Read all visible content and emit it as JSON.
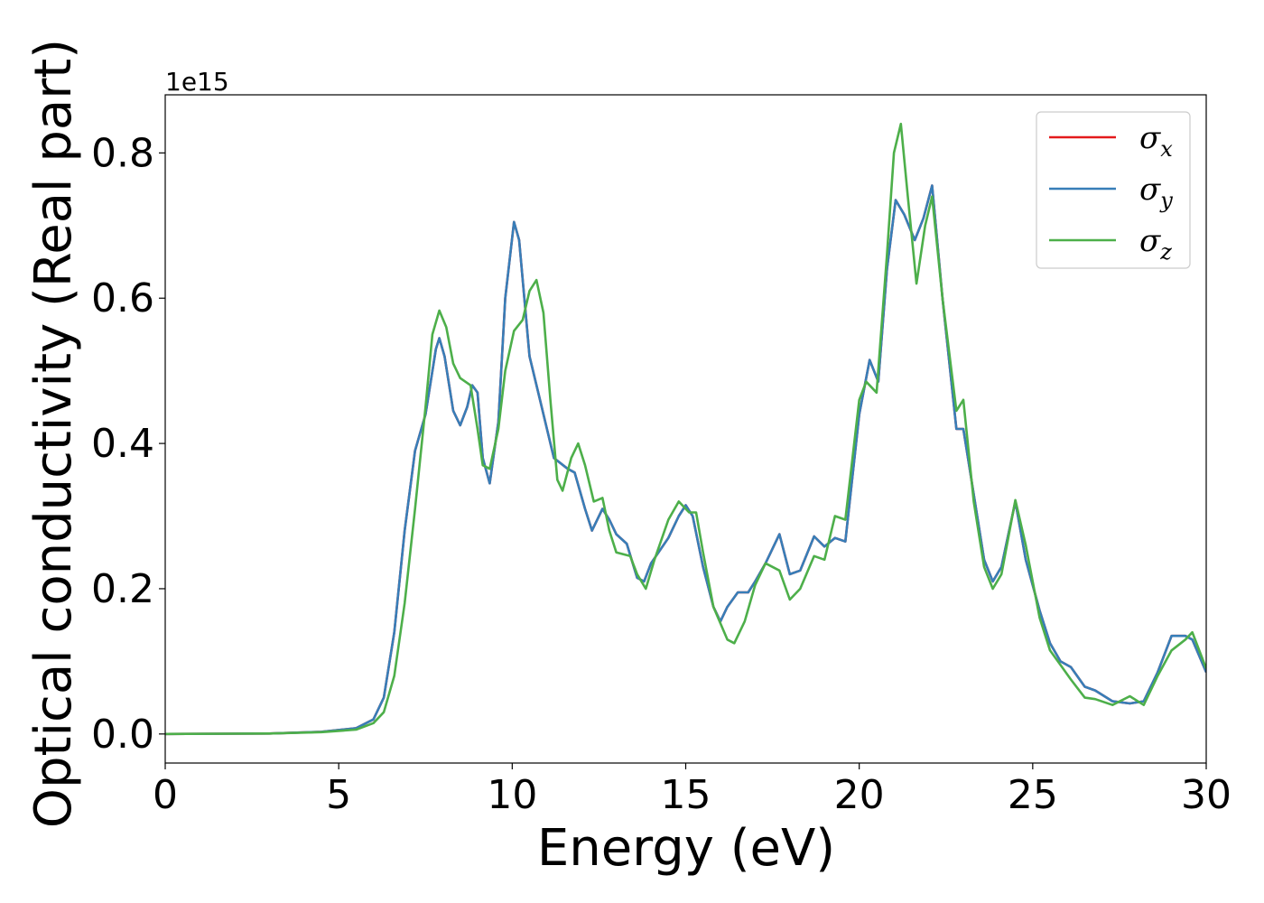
{
  "chart_data": {
    "type": "line",
    "title": "",
    "xlabel": "Energy (eV)",
    "ylabel": "Optical conductivity (Real part)",
    "y_offset_text": "1e15",
    "xlim": [
      0,
      30
    ],
    "ylim": [
      -0.04,
      0.88
    ],
    "xticks": [
      0,
      5,
      10,
      15,
      20,
      25,
      30
    ],
    "xtick_labels": [
      "0",
      "5",
      "10",
      "15",
      "20",
      "25",
      "30"
    ],
    "yticks": [
      0.0,
      0.2,
      0.4,
      0.6,
      0.8
    ],
    "ytick_labels": [
      "0.0",
      "0.2",
      "0.4",
      "0.6",
      "0.8"
    ],
    "grid": false,
    "legend_position": "top-right",
    "series": [
      {
        "name": "σx",
        "symbol": "σ",
        "subscript": "x",
        "color": "#e41a1c",
        "points": [
          [
            0,
            0
          ],
          [
            3,
            0.0007
          ],
          [
            4.5,
            0.003
          ],
          [
            5.5,
            0.008
          ],
          [
            6,
            0.02
          ],
          [
            6.3,
            0.05
          ],
          [
            6.6,
            0.14
          ],
          [
            6.9,
            0.28
          ],
          [
            7.2,
            0.39
          ],
          [
            7.5,
            0.44
          ],
          [
            7.8,
            0.53
          ],
          [
            7.9,
            0.545
          ],
          [
            8.05,
            0.52
          ],
          [
            8.3,
            0.445
          ],
          [
            8.5,
            0.425
          ],
          [
            8.7,
            0.45
          ],
          [
            8.85,
            0.48
          ],
          [
            9.0,
            0.47
          ],
          [
            9.15,
            0.38
          ],
          [
            9.35,
            0.345
          ],
          [
            9.6,
            0.43
          ],
          [
            9.8,
            0.6
          ],
          [
            10.05,
            0.705
          ],
          [
            10.2,
            0.68
          ],
          [
            10.5,
            0.52
          ],
          [
            10.8,
            0.46
          ],
          [
            11.0,
            0.42
          ],
          [
            11.2,
            0.38
          ],
          [
            11.6,
            0.365
          ],
          [
            11.8,
            0.36
          ],
          [
            12.1,
            0.31
          ],
          [
            12.3,
            0.28
          ],
          [
            12.6,
            0.31
          ],
          [
            12.8,
            0.295
          ],
          [
            13.0,
            0.275
          ],
          [
            13.3,
            0.262
          ],
          [
            13.6,
            0.215
          ],
          [
            13.8,
            0.21
          ],
          [
            14.0,
            0.235
          ],
          [
            14.5,
            0.27
          ],
          [
            14.8,
            0.3
          ],
          [
            15.0,
            0.315
          ],
          [
            15.2,
            0.3
          ],
          [
            15.5,
            0.23
          ],
          [
            15.8,
            0.175
          ],
          [
            16.0,
            0.155
          ],
          [
            16.2,
            0.175
          ],
          [
            16.5,
            0.195
          ],
          [
            16.8,
            0.195
          ],
          [
            17.0,
            0.21
          ],
          [
            17.3,
            0.235
          ],
          [
            17.7,
            0.275
          ],
          [
            18.0,
            0.22
          ],
          [
            18.3,
            0.225
          ],
          [
            18.7,
            0.272
          ],
          [
            19.0,
            0.258
          ],
          [
            19.3,
            0.27
          ],
          [
            19.6,
            0.265
          ],
          [
            20.0,
            0.44
          ],
          [
            20.3,
            0.515
          ],
          [
            20.55,
            0.485
          ],
          [
            20.8,
            0.64
          ],
          [
            21.05,
            0.735
          ],
          [
            21.3,
            0.715
          ],
          [
            21.6,
            0.68
          ],
          [
            21.85,
            0.71
          ],
          [
            22.1,
            0.755
          ],
          [
            22.4,
            0.6
          ],
          [
            22.8,
            0.42
          ],
          [
            23.0,
            0.42
          ],
          [
            23.3,
            0.33
          ],
          [
            23.6,
            0.24
          ],
          [
            23.85,
            0.21
          ],
          [
            24.1,
            0.23
          ],
          [
            24.5,
            0.32
          ],
          [
            24.8,
            0.24
          ],
          [
            25.2,
            0.17
          ],
          [
            25.5,
            0.125
          ],
          [
            25.8,
            0.1
          ],
          [
            26.1,
            0.092
          ],
          [
            26.5,
            0.065
          ],
          [
            26.8,
            0.06
          ],
          [
            27.3,
            0.045
          ],
          [
            27.8,
            0.042
          ],
          [
            28.2,
            0.045
          ],
          [
            28.6,
            0.085
          ],
          [
            29.0,
            0.135
          ],
          [
            29.4,
            0.135
          ],
          [
            29.6,
            0.13
          ],
          [
            30.0,
            0.085
          ]
        ]
      },
      {
        "name": "σy",
        "symbol": "σ",
        "subscript": "y",
        "color": "#377eb8",
        "points": [
          [
            0,
            0
          ],
          [
            3,
            0.0007
          ],
          [
            4.5,
            0.003
          ],
          [
            5.5,
            0.008
          ],
          [
            6,
            0.02
          ],
          [
            6.3,
            0.05
          ],
          [
            6.6,
            0.14
          ],
          [
            6.9,
            0.28
          ],
          [
            7.2,
            0.39
          ],
          [
            7.5,
            0.44
          ],
          [
            7.8,
            0.53
          ],
          [
            7.9,
            0.545
          ],
          [
            8.05,
            0.52
          ],
          [
            8.3,
            0.445
          ],
          [
            8.5,
            0.425
          ],
          [
            8.7,
            0.45
          ],
          [
            8.85,
            0.48
          ],
          [
            9.0,
            0.47
          ],
          [
            9.15,
            0.38
          ],
          [
            9.35,
            0.345
          ],
          [
            9.6,
            0.43
          ],
          [
            9.8,
            0.6
          ],
          [
            10.05,
            0.705
          ],
          [
            10.2,
            0.68
          ],
          [
            10.5,
            0.52
          ],
          [
            10.8,
            0.46
          ],
          [
            11.0,
            0.42
          ],
          [
            11.2,
            0.38
          ],
          [
            11.6,
            0.365
          ],
          [
            11.8,
            0.36
          ],
          [
            12.1,
            0.31
          ],
          [
            12.3,
            0.28
          ],
          [
            12.6,
            0.31
          ],
          [
            12.8,
            0.295
          ],
          [
            13.0,
            0.275
          ],
          [
            13.3,
            0.262
          ],
          [
            13.6,
            0.215
          ],
          [
            13.8,
            0.21
          ],
          [
            14.0,
            0.235
          ],
          [
            14.5,
            0.27
          ],
          [
            14.8,
            0.3
          ],
          [
            15.0,
            0.315
          ],
          [
            15.2,
            0.3
          ],
          [
            15.5,
            0.23
          ],
          [
            15.8,
            0.175
          ],
          [
            16.0,
            0.155
          ],
          [
            16.2,
            0.175
          ],
          [
            16.5,
            0.195
          ],
          [
            16.8,
            0.195
          ],
          [
            17.0,
            0.21
          ],
          [
            17.3,
            0.235
          ],
          [
            17.7,
            0.275
          ],
          [
            18.0,
            0.22
          ],
          [
            18.3,
            0.225
          ],
          [
            18.7,
            0.272
          ],
          [
            19.0,
            0.258
          ],
          [
            19.3,
            0.27
          ],
          [
            19.6,
            0.265
          ],
          [
            20.0,
            0.44
          ],
          [
            20.3,
            0.515
          ],
          [
            20.55,
            0.485
          ],
          [
            20.8,
            0.64
          ],
          [
            21.05,
            0.735
          ],
          [
            21.3,
            0.715
          ],
          [
            21.6,
            0.68
          ],
          [
            21.85,
            0.71
          ],
          [
            22.1,
            0.755
          ],
          [
            22.4,
            0.6
          ],
          [
            22.8,
            0.42
          ],
          [
            23.0,
            0.42
          ],
          [
            23.3,
            0.33
          ],
          [
            23.6,
            0.24
          ],
          [
            23.85,
            0.21
          ],
          [
            24.1,
            0.23
          ],
          [
            24.5,
            0.32
          ],
          [
            24.8,
            0.24
          ],
          [
            25.2,
            0.17
          ],
          [
            25.5,
            0.125
          ],
          [
            25.8,
            0.1
          ],
          [
            26.1,
            0.092
          ],
          [
            26.5,
            0.065
          ],
          [
            26.8,
            0.06
          ],
          [
            27.3,
            0.045
          ],
          [
            27.8,
            0.042
          ],
          [
            28.2,
            0.045
          ],
          [
            28.6,
            0.085
          ],
          [
            29.0,
            0.135
          ],
          [
            29.4,
            0.135
          ],
          [
            29.6,
            0.13
          ],
          [
            30.0,
            0.085
          ]
        ]
      },
      {
        "name": "σz",
        "symbol": "σ",
        "subscript": "z",
        "color": "#4daf4a",
        "points": [
          [
            0,
            0
          ],
          [
            3,
            0.0006
          ],
          [
            4.5,
            0.0025
          ],
          [
            5.5,
            0.006
          ],
          [
            6,
            0.015
          ],
          [
            6.3,
            0.03
          ],
          [
            6.6,
            0.08
          ],
          [
            6.9,
            0.18
          ],
          [
            7.2,
            0.31
          ],
          [
            7.5,
            0.45
          ],
          [
            7.7,
            0.55
          ],
          [
            7.9,
            0.583
          ],
          [
            8.1,
            0.56
          ],
          [
            8.3,
            0.51
          ],
          [
            8.5,
            0.49
          ],
          [
            8.8,
            0.48
          ],
          [
            9.0,
            0.42
          ],
          [
            9.15,
            0.37
          ],
          [
            9.35,
            0.365
          ],
          [
            9.6,
            0.42
          ],
          [
            9.8,
            0.5
          ],
          [
            10.05,
            0.555
          ],
          [
            10.3,
            0.57
          ],
          [
            10.5,
            0.61
          ],
          [
            10.7,
            0.625
          ],
          [
            10.9,
            0.58
          ],
          [
            11.1,
            0.46
          ],
          [
            11.3,
            0.35
          ],
          [
            11.45,
            0.335
          ],
          [
            11.7,
            0.38
          ],
          [
            11.9,
            0.4
          ],
          [
            12.1,
            0.37
          ],
          [
            12.35,
            0.32
          ],
          [
            12.6,
            0.325
          ],
          [
            12.8,
            0.28
          ],
          [
            13.0,
            0.25
          ],
          [
            13.4,
            0.245
          ],
          [
            13.6,
            0.22
          ],
          [
            13.85,
            0.2
          ],
          [
            14.1,
            0.24
          ],
          [
            14.5,
            0.295
          ],
          [
            14.8,
            0.32
          ],
          [
            15.1,
            0.305
          ],
          [
            15.3,
            0.305
          ],
          [
            15.5,
            0.25
          ],
          [
            15.8,
            0.175
          ],
          [
            16.2,
            0.13
          ],
          [
            16.4,
            0.125
          ],
          [
            16.7,
            0.155
          ],
          [
            17.0,
            0.205
          ],
          [
            17.3,
            0.235
          ],
          [
            17.7,
            0.225
          ],
          [
            18.0,
            0.185
          ],
          [
            18.3,
            0.2
          ],
          [
            18.7,
            0.245
          ],
          [
            19.0,
            0.24
          ],
          [
            19.3,
            0.3
          ],
          [
            19.6,
            0.295
          ],
          [
            20.0,
            0.46
          ],
          [
            20.2,
            0.485
          ],
          [
            20.5,
            0.47
          ],
          [
            20.8,
            0.66
          ],
          [
            21.0,
            0.8
          ],
          [
            21.2,
            0.84
          ],
          [
            21.4,
            0.74
          ],
          [
            21.65,
            0.62
          ],
          [
            21.9,
            0.7
          ],
          [
            22.1,
            0.74
          ],
          [
            22.4,
            0.6
          ],
          [
            22.8,
            0.445
          ],
          [
            23.0,
            0.46
          ],
          [
            23.3,
            0.32
          ],
          [
            23.6,
            0.23
          ],
          [
            23.85,
            0.2
          ],
          [
            24.1,
            0.22
          ],
          [
            24.5,
            0.322
          ],
          [
            24.8,
            0.26
          ],
          [
            25.2,
            0.16
          ],
          [
            25.5,
            0.115
          ],
          [
            25.8,
            0.095
          ],
          [
            26.1,
            0.075
          ],
          [
            26.5,
            0.05
          ],
          [
            26.8,
            0.048
          ],
          [
            27.3,
            0.04
          ],
          [
            27.8,
            0.052
          ],
          [
            28.2,
            0.04
          ],
          [
            28.6,
            0.08
          ],
          [
            29.0,
            0.115
          ],
          [
            29.4,
            0.13
          ],
          [
            29.6,
            0.14
          ],
          [
            30.0,
            0.09
          ]
        ]
      }
    ]
  }
}
